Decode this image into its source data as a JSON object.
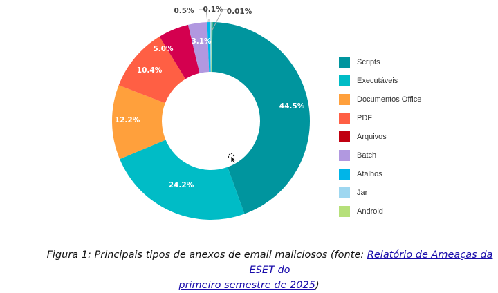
{
  "chart_data": {
    "type": "pie",
    "donut": true,
    "title": "",
    "categories": [
      "Scripts",
      "Executáveis",
      "Documentos Office",
      "PDF",
      "Arquivos",
      "Batch",
      "Atalhos",
      "Jar",
      "Android"
    ],
    "values": [
      44.5,
      24.2,
      12.2,
      10.4,
      5.0,
      3.1,
      0.5,
      0.1,
      0.01
    ],
    "labels": [
      "44.5%",
      "24.2%",
      "12.2%",
      "10.4%",
      "5.0%",
      "3.1%",
      "0.5%",
      "0.1%",
      "0.01%"
    ],
    "colors": [
      "#00959e",
      "#00bcc6",
      "#ffa03c",
      "#ff5f44",
      "#d4004f",
      "#b198e0",
      "#00b5e8",
      "#9ed7f0",
      "#b6e07a"
    ],
    "legend_position": "right",
    "unit": "%"
  },
  "legend": {
    "items": [
      {
        "label": "Scripts",
        "color": "#00959e"
      },
      {
        "label": "Executáveis",
        "color": "#00bcc6"
      },
      {
        "label": "Documentos Office",
        "color": "#ffa03c"
      },
      {
        "label": "PDF",
        "color": "#ff5f44"
      },
      {
        "label": "Arquivos",
        "color": "#c00010"
      },
      {
        "label": "Batch",
        "color": "#b198e0"
      },
      {
        "label": "Atalhos",
        "color": "#00b5e8"
      },
      {
        "label": "Jar",
        "color": "#9ed7f0"
      },
      {
        "label": "Android",
        "color": "#b6e07a"
      }
    ]
  },
  "caption": {
    "prefix": "Figura 1: Principais tipos de anexos de email maliciosos (fonte: ",
    "link_part1": "Relatório de Ameaças da ESET do",
    "link_part2": "primeiro semestre de 2025",
    "suffix": ")"
  }
}
